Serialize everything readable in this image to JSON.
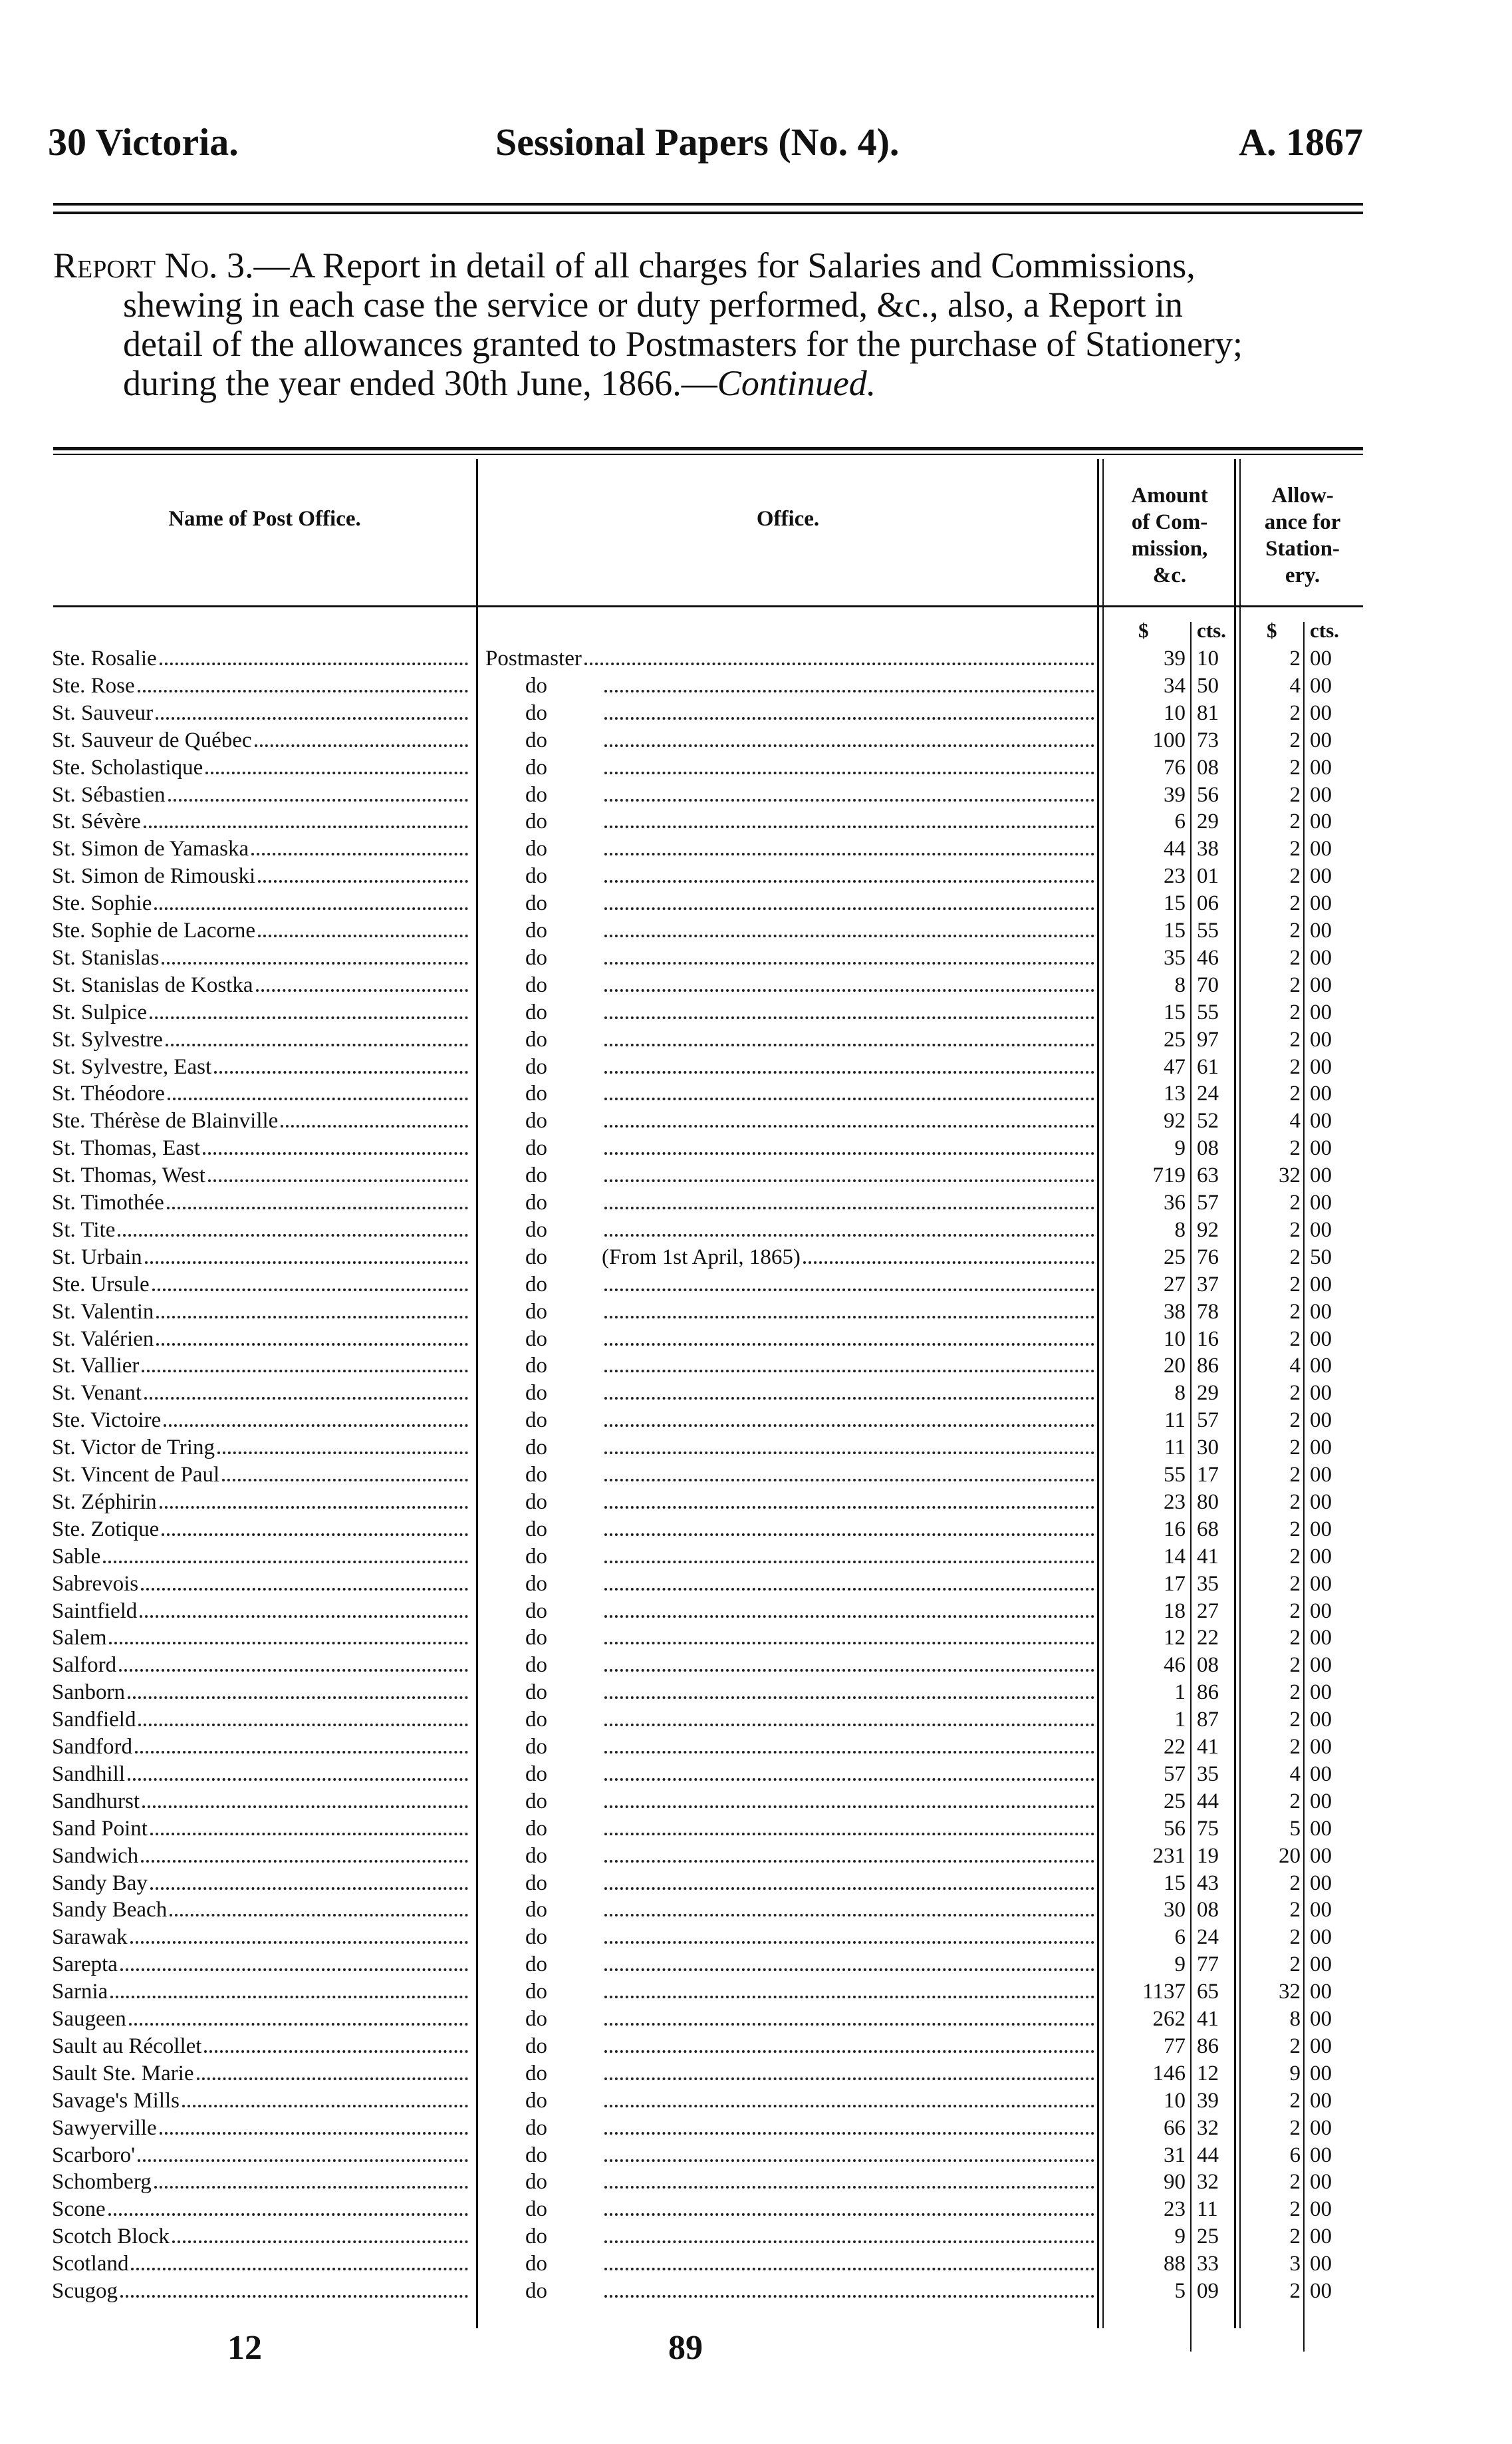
{
  "header": {
    "left": "30 Victoria.",
    "center": "Sessional Papers (No. 4).",
    "right": "A. 1867"
  },
  "report": {
    "label": "Report No.",
    "lines": [
      " 3.—A Report in detail of all charges for Salaries and Commissions,",
      "shewing in each case the service or duty performed, &c., also, a Report in",
      "detail of the allowances granted to Postmasters for the purchase of Stationery;",
      "during the year ended 30th June, 1866.—"
    ],
    "continued": "Continued."
  },
  "table": {
    "columns": {
      "name": "Name of Post Office.",
      "office": "Office.",
      "amount": [
        "Amount",
        "of Com-",
        "mission,",
        "&c."
      ],
      "allowance": [
        "Allow-",
        "ance for",
        "Station-",
        "ery."
      ]
    },
    "units": {
      "dollars": "$",
      "cents": "cts."
    },
    "rows": [
      {
        "name": "Ste. Rosalie",
        "office": "Postmaster",
        "note": "",
        "amt": "39",
        "amt_c": "10",
        "alw": "2",
        "alw_c": "00"
      },
      {
        "name": "Ste. Rose",
        "office": "do",
        "note": "",
        "amt": "34",
        "amt_c": "50",
        "alw": "4",
        "alw_c": "00"
      },
      {
        "name": "St. Sauveur",
        "office": "do",
        "note": "",
        "amt": "10",
        "amt_c": "81",
        "alw": "2",
        "alw_c": "00"
      },
      {
        "name": "St. Sauveur de Québec",
        "office": "do",
        "note": "",
        "amt": "100",
        "amt_c": "73",
        "alw": "2",
        "alw_c": "00"
      },
      {
        "name": "Ste. Scholastique",
        "office": "do",
        "note": "",
        "amt": "76",
        "amt_c": "08",
        "alw": "2",
        "alw_c": "00"
      },
      {
        "name": "St. Sébastien",
        "office": "do",
        "note": "",
        "amt": "39",
        "amt_c": "56",
        "alw": "2",
        "alw_c": "00"
      },
      {
        "name": "St. Sévère",
        "office": "do",
        "note": "",
        "amt": "6",
        "amt_c": "29",
        "alw": "2",
        "alw_c": "00"
      },
      {
        "name": "St. Simon de Yamaska",
        "office": "do",
        "note": "",
        "amt": "44",
        "amt_c": "38",
        "alw": "2",
        "alw_c": "00"
      },
      {
        "name": "St. Simon de Rimouski",
        "office": "do",
        "note": "",
        "amt": "23",
        "amt_c": "01",
        "alw": "2",
        "alw_c": "00"
      },
      {
        "name": "Ste. Sophie",
        "office": "do",
        "note": "",
        "amt": "15",
        "amt_c": "06",
        "alw": "2",
        "alw_c": "00"
      },
      {
        "name": "Ste. Sophie de Lacorne",
        "office": "do",
        "note": "",
        "amt": "15",
        "amt_c": "55",
        "alw": "2",
        "alw_c": "00"
      },
      {
        "name": "St. Stanislas",
        "office": "do",
        "note": "",
        "amt": "35",
        "amt_c": "46",
        "alw": "2",
        "alw_c": "00"
      },
      {
        "name": "St. Stanislas de Kostka",
        "office": "do",
        "note": "",
        "amt": "8",
        "amt_c": "70",
        "alw": "2",
        "alw_c": "00"
      },
      {
        "name": "St. Sulpice",
        "office": "do",
        "note": "",
        "amt": "15",
        "amt_c": "55",
        "alw": "2",
        "alw_c": "00"
      },
      {
        "name": "St. Sylvestre",
        "office": "do",
        "note": "",
        "amt": "25",
        "amt_c": "97",
        "alw": "2",
        "alw_c": "00"
      },
      {
        "name": "St. Sylvestre, East",
        "office": "do",
        "note": "",
        "amt": "47",
        "amt_c": "61",
        "alw": "2",
        "alw_c": "00"
      },
      {
        "name": "St. Théodore",
        "office": "do",
        "note": "",
        "amt": "13",
        "amt_c": "24",
        "alw": "2",
        "alw_c": "00"
      },
      {
        "name": "Ste. Thérèse de Blainville",
        "office": "do",
        "note": "",
        "amt": "92",
        "amt_c": "52",
        "alw": "4",
        "alw_c": "00"
      },
      {
        "name": "St. Thomas, East",
        "office": "do",
        "note": "",
        "amt": "9",
        "amt_c": "08",
        "alw": "2",
        "alw_c": "00"
      },
      {
        "name": "St. Thomas, West",
        "office": "do",
        "note": "",
        "amt": "719",
        "amt_c": "63",
        "alw": "32",
        "alw_c": "00"
      },
      {
        "name": "St. Timothée",
        "office": "do",
        "note": "",
        "amt": "36",
        "amt_c": "57",
        "alw": "2",
        "alw_c": "00"
      },
      {
        "name": "St. Tite",
        "office": "do",
        "note": "",
        "amt": "8",
        "amt_c": "92",
        "alw": "2",
        "alw_c": "00"
      },
      {
        "name": "St. Urbain",
        "office": "do",
        "note": "(From 1st April, 1865)",
        "amt": "25",
        "amt_c": "76",
        "alw": "2",
        "alw_c": "50"
      },
      {
        "name": "Ste. Ursule",
        "office": "do",
        "note": "",
        "amt": "27",
        "amt_c": "37",
        "alw": "2",
        "alw_c": "00"
      },
      {
        "name": "St. Valentin",
        "office": "do",
        "note": "",
        "amt": "38",
        "amt_c": "78",
        "alw": "2",
        "alw_c": "00"
      },
      {
        "name": "St. Valérien",
        "office": "do",
        "note": "",
        "amt": "10",
        "amt_c": "16",
        "alw": "2",
        "alw_c": "00"
      },
      {
        "name": "St. Vallier",
        "office": "do",
        "note": "",
        "amt": "20",
        "amt_c": "86",
        "alw": "4",
        "alw_c": "00"
      },
      {
        "name": "St. Venant",
        "office": "do",
        "note": "",
        "amt": "8",
        "amt_c": "29",
        "alw": "2",
        "alw_c": "00"
      },
      {
        "name": "Ste. Victoire",
        "office": "do",
        "note": "",
        "amt": "11",
        "amt_c": "57",
        "alw": "2",
        "alw_c": "00"
      },
      {
        "name": "St. Victor de Tring",
        "office": "do",
        "note": "",
        "amt": "11",
        "amt_c": "30",
        "alw": "2",
        "alw_c": "00"
      },
      {
        "name": "St. Vincent de Paul",
        "office": "do",
        "note": "",
        "amt": "55",
        "amt_c": "17",
        "alw": "2",
        "alw_c": "00"
      },
      {
        "name": "St. Zéphirin",
        "office": "do",
        "note": "",
        "amt": "23",
        "amt_c": "80",
        "alw": "2",
        "alw_c": "00"
      },
      {
        "name": "Ste. Zotique",
        "office": "do",
        "note": "",
        "amt": "16",
        "amt_c": "68",
        "alw": "2",
        "alw_c": "00"
      },
      {
        "name": "Sable",
        "office": "do",
        "note": "",
        "amt": "14",
        "amt_c": "41",
        "alw": "2",
        "alw_c": "00"
      },
      {
        "name": "Sabrevois",
        "office": "do",
        "note": "",
        "amt": "17",
        "amt_c": "35",
        "alw": "2",
        "alw_c": "00"
      },
      {
        "name": "Saintfield",
        "office": "do",
        "note": "",
        "amt": "18",
        "amt_c": "27",
        "alw": "2",
        "alw_c": "00"
      },
      {
        "name": "Salem",
        "office": "do",
        "note": "",
        "amt": "12",
        "amt_c": "22",
        "alw": "2",
        "alw_c": "00"
      },
      {
        "name": "Salford",
        "office": "do",
        "note": "",
        "amt": "46",
        "amt_c": "08",
        "alw": "2",
        "alw_c": "00"
      },
      {
        "name": "Sanborn",
        "office": "do",
        "note": "",
        "amt": "1",
        "amt_c": "86",
        "alw": "2",
        "alw_c": "00"
      },
      {
        "name": "Sandfield",
        "office": "do",
        "note": "",
        "amt": "1",
        "amt_c": "87",
        "alw": "2",
        "alw_c": "00"
      },
      {
        "name": "Sandford",
        "office": "do",
        "note": "",
        "amt": "22",
        "amt_c": "41",
        "alw": "2",
        "alw_c": "00"
      },
      {
        "name": "Sandhill",
        "office": "do",
        "note": "",
        "amt": "57",
        "amt_c": "35",
        "alw": "4",
        "alw_c": "00"
      },
      {
        "name": "Sandhurst",
        "office": "do",
        "note": "",
        "amt": "25",
        "amt_c": "44",
        "alw": "2",
        "alw_c": "00"
      },
      {
        "name": "Sand Point",
        "office": "do",
        "note": "",
        "amt": "56",
        "amt_c": "75",
        "alw": "5",
        "alw_c": "00"
      },
      {
        "name": "Sandwich",
        "office": "do",
        "note": "",
        "amt": "231",
        "amt_c": "19",
        "alw": "20",
        "alw_c": "00"
      },
      {
        "name": "Sandy Bay",
        "office": "do",
        "note": "",
        "amt": "15",
        "amt_c": "43",
        "alw": "2",
        "alw_c": "00"
      },
      {
        "name": "Sandy Beach",
        "office": "do",
        "note": "",
        "amt": "30",
        "amt_c": "08",
        "alw": "2",
        "alw_c": "00"
      },
      {
        "name": "Sarawak",
        "office": "do",
        "note": "",
        "amt": "6",
        "amt_c": "24",
        "alw": "2",
        "alw_c": "00"
      },
      {
        "name": "Sarepta",
        "office": "do",
        "note": "",
        "amt": "9",
        "amt_c": "77",
        "alw": "2",
        "alw_c": "00"
      },
      {
        "name": "Sarnia",
        "office": "do",
        "note": "",
        "amt": "1137",
        "amt_c": "65",
        "alw": "32",
        "alw_c": "00"
      },
      {
        "name": "Saugeen",
        "office": "do",
        "note": "",
        "amt": "262",
        "amt_c": "41",
        "alw": "8",
        "alw_c": "00"
      },
      {
        "name": "Sault au Récollet",
        "office": "do",
        "note": "",
        "amt": "77",
        "amt_c": "86",
        "alw": "2",
        "alw_c": "00"
      },
      {
        "name": "Sault Ste. Marie",
        "office": "do",
        "note": "",
        "amt": "146",
        "amt_c": "12",
        "alw": "9",
        "alw_c": "00"
      },
      {
        "name": "Savage's Mills",
        "office": "do",
        "note": "",
        "amt": "10",
        "amt_c": "39",
        "alw": "2",
        "alw_c": "00"
      },
      {
        "name": "Sawyerville",
        "office": "do",
        "note": "",
        "amt": "66",
        "amt_c": "32",
        "alw": "2",
        "alw_c": "00"
      },
      {
        "name": "Scarboro'",
        "office": "do",
        "note": "",
        "amt": "31",
        "amt_c": "44",
        "alw": "6",
        "alw_c": "00"
      },
      {
        "name": "Schomberg",
        "office": "do",
        "note": "",
        "amt": "90",
        "amt_c": "32",
        "alw": "2",
        "alw_c": "00"
      },
      {
        "name": "Scone",
        "office": "do",
        "note": "",
        "amt": "23",
        "amt_c": "11",
        "alw": "2",
        "alw_c": "00"
      },
      {
        "name": "Scotch Block",
        "office": "do",
        "note": "",
        "amt": "9",
        "amt_c": "25",
        "alw": "2",
        "alw_c": "00"
      },
      {
        "name": "Scotland",
        "office": "do",
        "note": "",
        "amt": "88",
        "amt_c": "33",
        "alw": "3",
        "alw_c": "00"
      },
      {
        "name": "Scugog",
        "office": "do",
        "note": "",
        "amt": "5",
        "amt_c": "09",
        "alw": "2",
        "alw_c": "00"
      }
    ]
  },
  "footer": {
    "left": "12",
    "center": "89"
  }
}
